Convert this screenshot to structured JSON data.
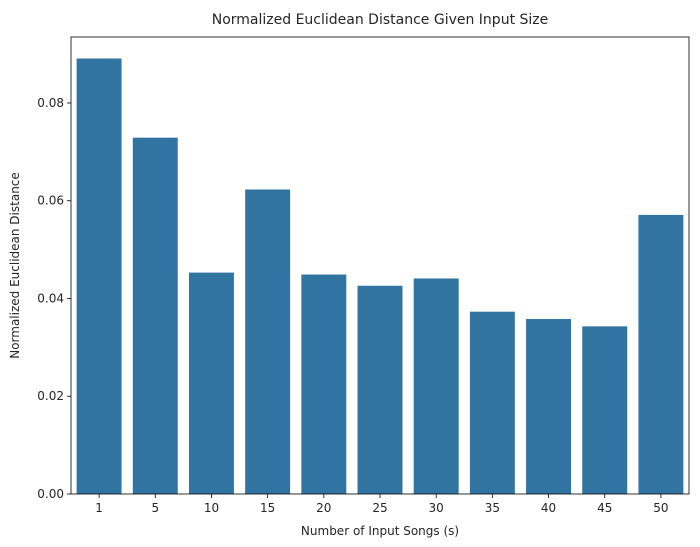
{
  "chart_data": {
    "type": "bar",
    "title": "Normalized Euclidean Distance Given Input Size",
    "xlabel": "Number of Input Songs (s)",
    "ylabel": "Normalized Euclidean Distance",
    "categories": [
      "1",
      "5",
      "10",
      "15",
      "20",
      "25",
      "30",
      "35",
      "40",
      "45",
      "50"
    ],
    "values": [
      0.0891,
      0.0729,
      0.0453,
      0.0623,
      0.0449,
      0.0426,
      0.0441,
      0.0373,
      0.0358,
      0.0343,
      0.0571
    ],
    "ylim": [
      0,
      0.0935
    ],
    "yticks": [
      0.0,
      0.02,
      0.04,
      0.06,
      0.08
    ],
    "ytick_labels": [
      "0.00",
      "0.02",
      "0.04",
      "0.06",
      "0.08"
    ],
    "grid": false,
    "bar_color": "#3274a1"
  }
}
